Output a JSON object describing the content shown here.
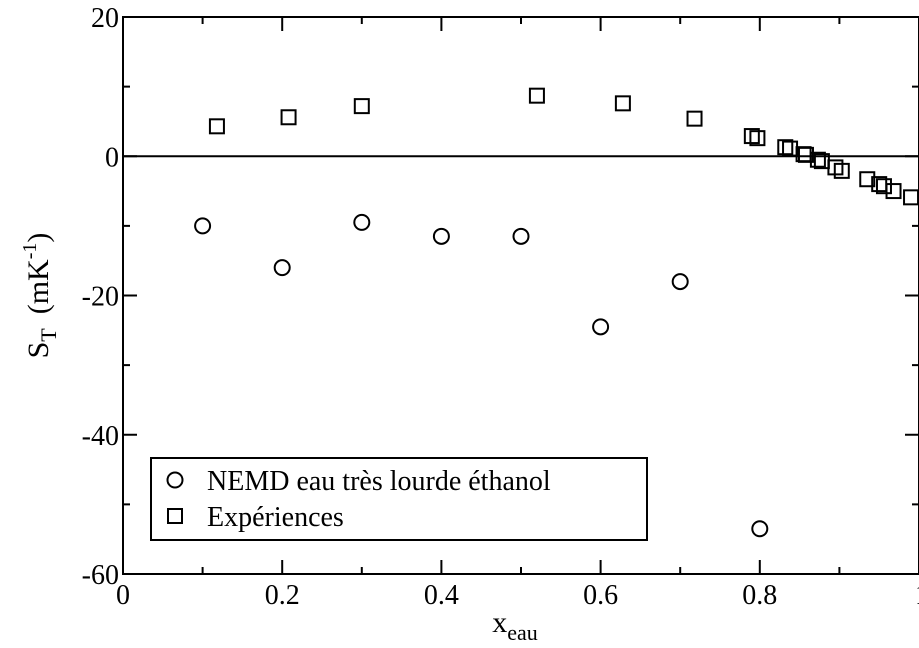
{
  "chart_data": {
    "type": "scatter",
    "title": "",
    "xlabel": "x",
    "xlabel_sub": "eau",
    "ylabel": "S",
    "ylabel_sub": "T",
    "ylabel_unit_main": "(mK",
    "ylabel_unit_sup": "-1",
    "ylabel_unit_close": ")",
    "xlim": [
      0,
      1
    ],
    "ylim": [
      -60,
      20
    ],
    "xticks": [
      0,
      0.2,
      0.4,
      0.6,
      0.8,
      1
    ],
    "xtick_labels": [
      "0",
      "0.2",
      "0.4",
      "0.6",
      "0.8",
      "1"
    ],
    "yticks": [
      -60,
      -40,
      -20,
      0,
      20
    ],
    "ytick_labels": [
      "-60",
      "-40",
      "-20",
      "0",
      "20"
    ],
    "x_minor_step": 0.1,
    "y_minor_step": 10,
    "zero_line": true,
    "grid": false,
    "legend_position": "bottom-left",
    "series": [
      {
        "name": "NEMD eau très lourde éthanol",
        "marker": "circle",
        "x": [
          0.1,
          0.2,
          0.3,
          0.4,
          0.5,
          0.6,
          0.7,
          0.8
        ],
        "y": [
          -10,
          -16,
          -9.5,
          -11.5,
          -11.5,
          -24.5,
          -18,
          -53.5
        ]
      },
      {
        "name": "Expériences",
        "marker": "square",
        "x": [
          0.118,
          0.208,
          0.3,
          0.52,
          0.628,
          0.718,
          0.79,
          0.797,
          0.832,
          0.838,
          0.855,
          0.858,
          0.873,
          0.878,
          0.895,
          0.903,
          0.935,
          0.95,
          0.956,
          0.968,
          0.99
        ],
        "y": [
          4.3,
          5.6,
          7.2,
          8.7,
          7.6,
          5.4,
          2.9,
          2.6,
          1.3,
          1.1,
          0.3,
          0.2,
          -0.5,
          -0.7,
          -1.6,
          -2.1,
          -3.3,
          -4.0,
          -4.3,
          -5.0,
          -5.9
        ]
      }
    ]
  }
}
